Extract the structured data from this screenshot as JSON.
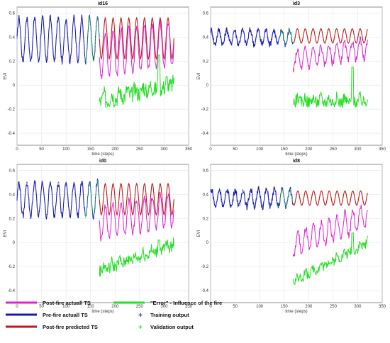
{
  "colors": {
    "post_actual": "#e020d8",
    "pre_actual": "#1818b8",
    "post_pred": "#c01818",
    "error": "#22e022",
    "training": "#1818b8",
    "validation": "#22e022"
  },
  "legend": {
    "post_actual": "Post-fire actuall TS",
    "pre_actual": "Pre-fire actuall TS",
    "post_pred": "Post-fire predicted TS",
    "error": "\"Error\" - Influence of the fire",
    "training": "Training output",
    "validation": "Validation output"
  },
  "chart_data": [
    {
      "type": "line",
      "title": "id16",
      "xlabel": "time (steps)",
      "ylabel": "EVI",
      "xlim": [
        0,
        350
      ],
      "ylim": [
        -0.5,
        0.65
      ],
      "grid": true,
      "xticks": [
        0,
        50,
        100,
        150,
        200,
        250,
        300,
        350
      ],
      "yticks": [
        -0.4,
        -0.2,
        0,
        0.2,
        0.4,
        0.6
      ],
      "fire_step": 168,
      "end_step": 320,
      "pre": {
        "base": 0.38,
        "amp": 0.18,
        "period": 16,
        "phase": 0
      },
      "post_actual": {
        "base": 0.37,
        "amp": 0.19,
        "period": 16,
        "phase": 0,
        "drop": 0.12
      },
      "post_pred": {
        "base": 0.39,
        "amp": 0.17,
        "period": 16,
        "phase": 0
      },
      "error": {
        "start": -0.14,
        "end": 0.0,
        "amp": 0.07,
        "peak": 0.25
      }
    },
    {
      "type": "line",
      "title": "id3",
      "xlabel": "time (steps)",
      "ylabel": "EVI",
      "xlim": [
        0,
        350
      ],
      "ylim": [
        -0.5,
        0.65
      ],
      "grid": true,
      "xticks": [
        0,
        50,
        100,
        150,
        200,
        250,
        300,
        350
      ],
      "yticks": [
        -0.4,
        -0.2,
        0,
        0.2,
        0.4,
        0.6
      ],
      "fire_step": 168,
      "end_step": 320,
      "pre": {
        "base": 0.4,
        "amp": 0.06,
        "period": 16,
        "phase": 3
      },
      "post_actual": {
        "base": 0.33,
        "amp": 0.08,
        "period": 16,
        "phase": 3,
        "drop": 0.12
      },
      "post_pred": {
        "base": 0.41,
        "amp": 0.06,
        "period": 16,
        "phase": 3
      },
      "error": {
        "start": -0.14,
        "end": -0.14,
        "amp": 0.05,
        "peak": 0.15
      }
    },
    {
      "type": "line",
      "title": "id0",
      "xlabel": "time (steps)",
      "ylabel": "EVI",
      "xlim": [
        0,
        350
      ],
      "ylim": [
        -0.5,
        0.65
      ],
      "grid": true,
      "xticks": [
        0,
        50,
        100,
        150,
        200,
        250,
        300,
        350
      ],
      "yticks": [
        -0.4,
        -0.2,
        0,
        0.2,
        0.4,
        0.6
      ],
      "fire_step": 168,
      "end_step": 320,
      "pre": {
        "base": 0.36,
        "amp": 0.14,
        "period": 16,
        "phase": 0
      },
      "post_actual": {
        "base": 0.31,
        "amp": 0.14,
        "period": 16,
        "phase": 0,
        "drop": 0.15
      },
      "post_pred": {
        "base": 0.36,
        "amp": 0.13,
        "period": 16,
        "phase": 0
      },
      "error": {
        "start": -0.24,
        "end": -0.03,
        "amp": 0.05,
        "peak": 0.02
      }
    },
    {
      "type": "line",
      "title": "id8",
      "xlabel": "time (steps)",
      "ylabel": "EVI",
      "xlim": [
        0,
        350
      ],
      "ylim": [
        -0.5,
        0.65
      ],
      "grid": true,
      "xticks": [
        0,
        50,
        100,
        150,
        200,
        250,
        300,
        350
      ],
      "yticks": [
        -0.4,
        -0.2,
        0,
        0.2,
        0.4,
        0.6
      ],
      "fire_step": 168,
      "end_step": 320,
      "pre": {
        "base": 0.37,
        "amp": 0.07,
        "period": 16,
        "phase": 2
      },
      "post_actual": {
        "base": 0.28,
        "amp": 0.1,
        "period": 16,
        "phase": 2,
        "drop": 0.3
      },
      "post_pred": {
        "base": 0.37,
        "amp": 0.06,
        "period": 16,
        "phase": 2
      },
      "error": {
        "start": -0.33,
        "end": -0.01,
        "amp": 0.04,
        "peak": 0.08
      }
    }
  ]
}
